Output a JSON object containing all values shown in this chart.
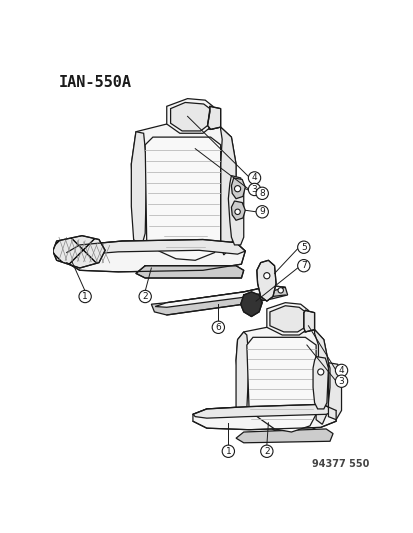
{
  "title": "IAN-550A",
  "part_number": "94377 550",
  "bg": "#ffffff",
  "lc": "#1a1a1a",
  "fill_light": "#f5f5f5",
  "fill_mid": "#e8e8e8",
  "fill_dark": "#cccccc",
  "fill_darker": "#aaaaaa",
  "hatch_color": "#999999",
  "lw": 0.9,
  "figsize": [
    4.14,
    5.33
  ],
  "dpi": 100
}
